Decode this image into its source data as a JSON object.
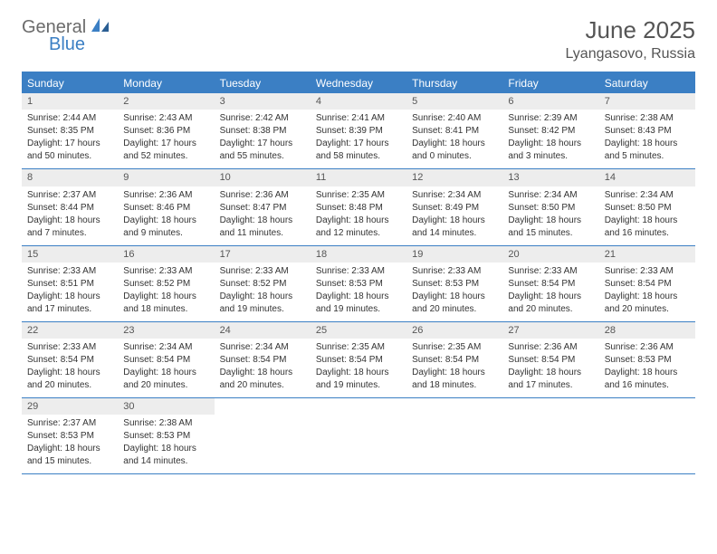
{
  "brand": {
    "word1": "General",
    "word2": "Blue"
  },
  "title": "June 2025",
  "location": "Lyangasovo, Russia",
  "colors": {
    "accent": "#3b7fc4",
    "dow_bg": "#3b7fc4",
    "dow_text": "#ffffff",
    "daynum_bg": "#ededed",
    "text": "#333333",
    "title_text": "#555555"
  },
  "daysOfWeek": [
    "Sunday",
    "Monday",
    "Tuesday",
    "Wednesday",
    "Thursday",
    "Friday",
    "Saturday"
  ],
  "weeks": [
    [
      {
        "n": "1",
        "sr": "Sunrise: 2:44 AM",
        "ss": "Sunset: 8:35 PM",
        "dl1": "Daylight: 17 hours",
        "dl2": "and 50 minutes."
      },
      {
        "n": "2",
        "sr": "Sunrise: 2:43 AM",
        "ss": "Sunset: 8:36 PM",
        "dl1": "Daylight: 17 hours",
        "dl2": "and 52 minutes."
      },
      {
        "n": "3",
        "sr": "Sunrise: 2:42 AM",
        "ss": "Sunset: 8:38 PM",
        "dl1": "Daylight: 17 hours",
        "dl2": "and 55 minutes."
      },
      {
        "n": "4",
        "sr": "Sunrise: 2:41 AM",
        "ss": "Sunset: 8:39 PM",
        "dl1": "Daylight: 17 hours",
        "dl2": "and 58 minutes."
      },
      {
        "n": "5",
        "sr": "Sunrise: 2:40 AM",
        "ss": "Sunset: 8:41 PM",
        "dl1": "Daylight: 18 hours",
        "dl2": "and 0 minutes."
      },
      {
        "n": "6",
        "sr": "Sunrise: 2:39 AM",
        "ss": "Sunset: 8:42 PM",
        "dl1": "Daylight: 18 hours",
        "dl2": "and 3 minutes."
      },
      {
        "n": "7",
        "sr": "Sunrise: 2:38 AM",
        "ss": "Sunset: 8:43 PM",
        "dl1": "Daylight: 18 hours",
        "dl2": "and 5 minutes."
      }
    ],
    [
      {
        "n": "8",
        "sr": "Sunrise: 2:37 AM",
        "ss": "Sunset: 8:44 PM",
        "dl1": "Daylight: 18 hours",
        "dl2": "and 7 minutes."
      },
      {
        "n": "9",
        "sr": "Sunrise: 2:36 AM",
        "ss": "Sunset: 8:46 PM",
        "dl1": "Daylight: 18 hours",
        "dl2": "and 9 minutes."
      },
      {
        "n": "10",
        "sr": "Sunrise: 2:36 AM",
        "ss": "Sunset: 8:47 PM",
        "dl1": "Daylight: 18 hours",
        "dl2": "and 11 minutes."
      },
      {
        "n": "11",
        "sr": "Sunrise: 2:35 AM",
        "ss": "Sunset: 8:48 PM",
        "dl1": "Daylight: 18 hours",
        "dl2": "and 12 minutes."
      },
      {
        "n": "12",
        "sr": "Sunrise: 2:34 AM",
        "ss": "Sunset: 8:49 PM",
        "dl1": "Daylight: 18 hours",
        "dl2": "and 14 minutes."
      },
      {
        "n": "13",
        "sr": "Sunrise: 2:34 AM",
        "ss": "Sunset: 8:50 PM",
        "dl1": "Daylight: 18 hours",
        "dl2": "and 15 minutes."
      },
      {
        "n": "14",
        "sr": "Sunrise: 2:34 AM",
        "ss": "Sunset: 8:50 PM",
        "dl1": "Daylight: 18 hours",
        "dl2": "and 16 minutes."
      }
    ],
    [
      {
        "n": "15",
        "sr": "Sunrise: 2:33 AM",
        "ss": "Sunset: 8:51 PM",
        "dl1": "Daylight: 18 hours",
        "dl2": "and 17 minutes."
      },
      {
        "n": "16",
        "sr": "Sunrise: 2:33 AM",
        "ss": "Sunset: 8:52 PM",
        "dl1": "Daylight: 18 hours",
        "dl2": "and 18 minutes."
      },
      {
        "n": "17",
        "sr": "Sunrise: 2:33 AM",
        "ss": "Sunset: 8:52 PM",
        "dl1": "Daylight: 18 hours",
        "dl2": "and 19 minutes."
      },
      {
        "n": "18",
        "sr": "Sunrise: 2:33 AM",
        "ss": "Sunset: 8:53 PM",
        "dl1": "Daylight: 18 hours",
        "dl2": "and 19 minutes."
      },
      {
        "n": "19",
        "sr": "Sunrise: 2:33 AM",
        "ss": "Sunset: 8:53 PM",
        "dl1": "Daylight: 18 hours",
        "dl2": "and 20 minutes."
      },
      {
        "n": "20",
        "sr": "Sunrise: 2:33 AM",
        "ss": "Sunset: 8:54 PM",
        "dl1": "Daylight: 18 hours",
        "dl2": "and 20 minutes."
      },
      {
        "n": "21",
        "sr": "Sunrise: 2:33 AM",
        "ss": "Sunset: 8:54 PM",
        "dl1": "Daylight: 18 hours",
        "dl2": "and 20 minutes."
      }
    ],
    [
      {
        "n": "22",
        "sr": "Sunrise: 2:33 AM",
        "ss": "Sunset: 8:54 PM",
        "dl1": "Daylight: 18 hours",
        "dl2": "and 20 minutes."
      },
      {
        "n": "23",
        "sr": "Sunrise: 2:34 AM",
        "ss": "Sunset: 8:54 PM",
        "dl1": "Daylight: 18 hours",
        "dl2": "and 20 minutes."
      },
      {
        "n": "24",
        "sr": "Sunrise: 2:34 AM",
        "ss": "Sunset: 8:54 PM",
        "dl1": "Daylight: 18 hours",
        "dl2": "and 20 minutes."
      },
      {
        "n": "25",
        "sr": "Sunrise: 2:35 AM",
        "ss": "Sunset: 8:54 PM",
        "dl1": "Daylight: 18 hours",
        "dl2": "and 19 minutes."
      },
      {
        "n": "26",
        "sr": "Sunrise: 2:35 AM",
        "ss": "Sunset: 8:54 PM",
        "dl1": "Daylight: 18 hours",
        "dl2": "and 18 minutes."
      },
      {
        "n": "27",
        "sr": "Sunrise: 2:36 AM",
        "ss": "Sunset: 8:54 PM",
        "dl1": "Daylight: 18 hours",
        "dl2": "and 17 minutes."
      },
      {
        "n": "28",
        "sr": "Sunrise: 2:36 AM",
        "ss": "Sunset: 8:53 PM",
        "dl1": "Daylight: 18 hours",
        "dl2": "and 16 minutes."
      }
    ],
    [
      {
        "n": "29",
        "sr": "Sunrise: 2:37 AM",
        "ss": "Sunset: 8:53 PM",
        "dl1": "Daylight: 18 hours",
        "dl2": "and 15 minutes."
      },
      {
        "n": "30",
        "sr": "Sunrise: 2:38 AM",
        "ss": "Sunset: 8:53 PM",
        "dl1": "Daylight: 18 hours",
        "dl2": "and 14 minutes."
      },
      null,
      null,
      null,
      null,
      null
    ]
  ]
}
